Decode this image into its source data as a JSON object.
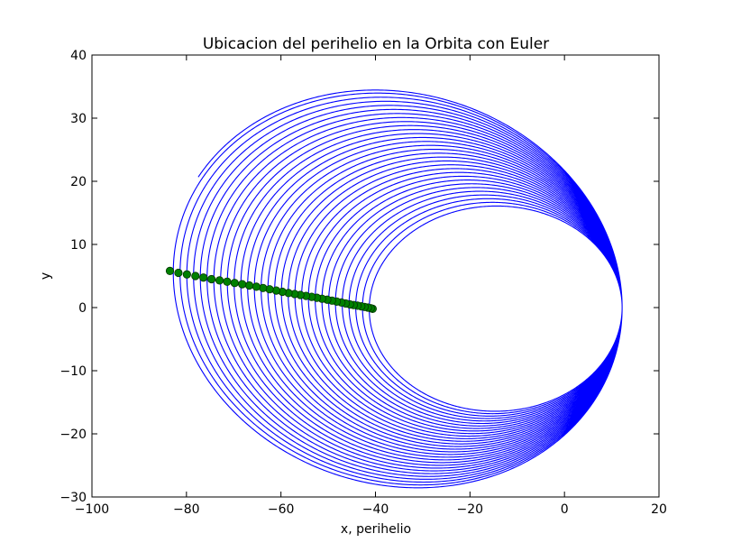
{
  "chart_data": {
    "type": "line",
    "title": "Ubicacion del perihelio en la Orbita con Euler",
    "xlabel": "x, perihelio",
    "ylabel": "y",
    "xlim": [
      -100,
      20
    ],
    "ylim": [
      -30,
      40
    ],
    "xticks": [
      -100,
      -80,
      -60,
      -40,
      -20,
      0,
      20
    ],
    "yticks": [
      -30,
      -20,
      -10,
      0,
      10,
      20,
      30,
      40
    ],
    "xtick_labels": [
      "−100",
      "−80",
      "−60",
      "−40",
      "−20",
      "0",
      "20"
    ],
    "ytick_labels": [
      "−30",
      "−20",
      "−10",
      "0",
      "10",
      "20",
      "30",
      "40"
    ],
    "grid": false,
    "legend": "none",
    "series": [
      {
        "kind": "orbit-spiral",
        "color": "#0000ff",
        "revolutions": 30,
        "aphelion_x": 12.2,
        "inner_orbit_perihelion_x": -40.6,
        "outer_orbit_perihelion": [
          -83.5,
          5.8
        ],
        "end_point": [
          -45,
          34.8
        ]
      },
      {
        "kind": "perihelion-markers",
        "color": "#008000",
        "marker": "circle",
        "x": [
          -40.6,
          -41.0,
          -41.6,
          -42.3,
          -43.0,
          -43.8,
          -44.6,
          -45.4,
          -46.3,
          -47.2,
          -48.2,
          -49.2,
          -50.2,
          -51.3,
          -52.4,
          -53.5,
          -54.7,
          -55.9,
          -57.1,
          -58.4,
          -59.7,
          -61.0,
          -62.4,
          -63.8,
          -65.2,
          -66.7,
          -68.2,
          -69.8,
          -71.4,
          -73.0,
          -74.7,
          -76.4,
          -78.1,
          -79.9,
          -81.7,
          -83.5
        ],
        "y": [
          -0.2,
          -0.1,
          0.0,
          0.1,
          0.2,
          0.3,
          0.4,
          0.5,
          0.65,
          0.8,
          0.95,
          1.1,
          1.25,
          1.4,
          1.55,
          1.7,
          1.85,
          2.0,
          2.15,
          2.3,
          2.5,
          2.7,
          2.9,
          3.1,
          3.3,
          3.5,
          3.7,
          3.9,
          4.1,
          4.3,
          4.5,
          4.75,
          5.0,
          5.25,
          5.5,
          5.8
        ]
      }
    ]
  }
}
